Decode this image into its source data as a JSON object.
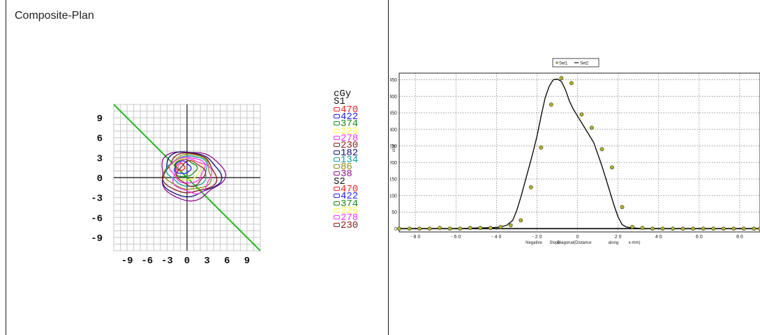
{
  "left_panel": {
    "title": "Composite-Plan",
    "legend": {
      "unit": "cGy",
      "groups": [
        {
          "name": "S1",
          "levels": [
            {
              "value": "470",
              "color": "#ff2020"
            },
            {
              "value": "422",
              "color": "#2020ff"
            },
            {
              "value": "374",
              "color": "#1a8a1a"
            },
            {
              "value": "326",
              "color": "#ffff40"
            },
            {
              "value": "278",
              "color": "#ff30ff"
            },
            {
              "value": "230",
              "color": "#8b1a1a"
            },
            {
              "value": "182",
              "color": "#10107a"
            },
            {
              "value": "134",
              "color": "#10a0a0"
            },
            {
              "value": "86",
              "color": "#8a8a10"
            },
            {
              "value": "38",
              "color": "#901090"
            }
          ]
        },
        {
          "name": "S2",
          "levels": [
            {
              "value": "470",
              "color": "#ff2020"
            },
            {
              "value": "422",
              "color": "#2020ff"
            },
            {
              "value": "374",
              "color": "#1a8a1a"
            },
            {
              "value": "326",
              "color": "#ffff40"
            },
            {
              "value": "278",
              "color": "#ff30ff"
            },
            {
              "value": "230",
              "color": "#8b1a1a"
            }
          ]
        }
      ]
    }
  },
  "chart_data": [
    {
      "type": "heatmap",
      "title": "",
      "x_ticks": [
        -9,
        -6,
        -3,
        0,
        3,
        6,
        9
      ],
      "y_ticks": [
        9,
        6,
        3,
        0,
        -3,
        -6,
        -9
      ],
      "x_range": [
        -11,
        11
      ],
      "y_range": [
        -11,
        11
      ],
      "grid": true,
      "profile_line": {
        "from": [
          -11,
          11
        ],
        "to": [
          11,
          -11
        ],
        "color": "#22bb22"
      },
      "isodose_contours_cGy": [
        470,
        422,
        374,
        326,
        278,
        230,
        182,
        134,
        86,
        38
      ]
    },
    {
      "type": "line",
      "title": "",
      "xlabel_words": [
        "Negative",
        "Slope",
        "Diagonal(Distance",
        "along",
        "x-mm)"
      ],
      "ylabel": "cGy",
      "xlim": [
        -88,
        90
      ],
      "ylim": [
        -10,
        470
      ],
      "x_ticks": [
        "-80",
        "-60",
        "-40",
        "-20",
        "0",
        "20",
        "40",
        "60",
        "80"
      ],
      "y_ticks": [
        "0",
        "50",
        "100",
        "150",
        "200",
        "250",
        "300",
        "350",
        "400",
        "450"
      ],
      "grid": true,
      "legend": [
        "Set1",
        "Set2"
      ],
      "legend_position": "top",
      "series": [
        {
          "name": "Set1",
          "style": "points",
          "x": [
            -88,
            -83,
            -78,
            -73,
            -68,
            -63,
            -58,
            -53,
            -48,
            -43,
            -38,
            -33,
            -28,
            -23,
            -18,
            -13,
            -8,
            -3,
            2,
            7,
            12,
            17,
            22,
            27,
            32,
            37,
            42,
            47,
            52,
            57,
            62,
            67,
            72,
            77,
            82,
            87,
            90
          ],
          "y": [
            0,
            0,
            0,
            0,
            2,
            0,
            0,
            2,
            2,
            2,
            5,
            10,
            25,
            125,
            245,
            375,
            455,
            440,
            345,
            305,
            240,
            185,
            65,
            5,
            2,
            0,
            0,
            0,
            0,
            0,
            0,
            0,
            0,
            0,
            0,
            0,
            0
          ]
        },
        {
          "name": "Set2",
          "style": "line",
          "x": [
            -58,
            -50,
            -42,
            -38,
            -35,
            -32,
            -30,
            -28,
            -26,
            -24,
            -22,
            -20,
            -18,
            -16,
            -14,
            -12,
            -10,
            -8,
            -6,
            -4,
            -2,
            0,
            2,
            4,
            6,
            8,
            10,
            12,
            14,
            16,
            18,
            20,
            22,
            24,
            26,
            28,
            30,
            35,
            40,
            44
          ],
          "y": [
            0,
            2,
            3,
            5,
            10,
            25,
            55,
            95,
            140,
            185,
            230,
            280,
            340,
            395,
            430,
            450,
            452,
            445,
            420,
            385,
            360,
            340,
            320,
            300,
            280,
            260,
            225,
            190,
            150,
            110,
            70,
            35,
            12,
            5,
            3,
            2,
            1,
            0,
            0,
            0
          ]
        }
      ]
    }
  ]
}
